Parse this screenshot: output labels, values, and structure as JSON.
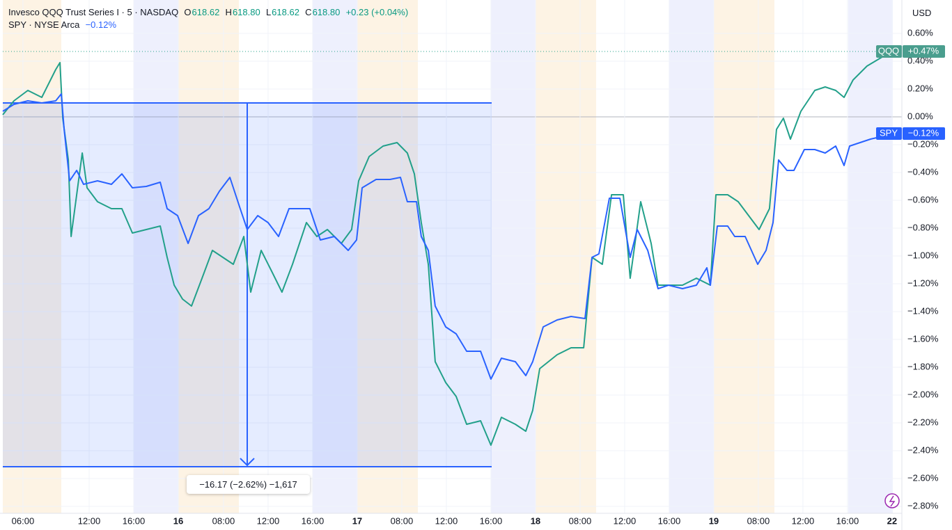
{
  "header": {
    "symbol": "Invesco QQQ Trust Series I · 5 · NASDAQ",
    "o_label": "O",
    "open": "618.62",
    "h_label": "H",
    "high": "618.80",
    "l_label": "L",
    "low": "618.62",
    "c_label": "C",
    "close": "618.80",
    "change": "+0.23 (+0.04%)",
    "compare": "SPY · NYSE Arca",
    "compare_change": "−0.12%"
  },
  "currency": "USD",
  "chart_data": {
    "type": "line",
    "annotation": "−16.17 (−2.62%) −1,617",
    "xlim": [
      0,
      80.69
    ],
    "ylim": [
      -2.85,
      0.84
    ],
    "xticks": [
      {
        "value": 1.81,
        "label": "06:00"
      },
      {
        "value": 7.75,
        "label": "12:00"
      },
      {
        "value": 11.75,
        "label": "16:00"
      },
      {
        "value": 15.75,
        "label": "16"
      },
      {
        "value": 19.81,
        "label": "08:00"
      },
      {
        "value": 23.81,
        "label": "12:00"
      },
      {
        "value": 27.81,
        "label": "16:00"
      },
      {
        "value": 31.81,
        "label": "17"
      },
      {
        "value": 35.81,
        "label": "08:00"
      },
      {
        "value": 39.81,
        "label": "12:00"
      },
      {
        "value": 43.81,
        "label": "16:00"
      },
      {
        "value": 47.81,
        "label": "18"
      },
      {
        "value": 51.81,
        "label": "08:00"
      },
      {
        "value": 55.81,
        "label": "12:00"
      },
      {
        "value": 59.81,
        "label": "16:00"
      },
      {
        "value": 63.81,
        "label": "19"
      },
      {
        "value": 67.81,
        "label": "08:00"
      },
      {
        "value": 71.81,
        "label": "12:00"
      },
      {
        "value": 75.81,
        "label": "16:00"
      },
      {
        "value": 79.81,
        "label": "22"
      }
    ],
    "yticks": [
      {
        "value": 0.6,
        "label": "0.60%"
      },
      {
        "value": 0.4,
        "label": "0.40%"
      },
      {
        "value": 0.2,
        "label": "0.20%"
      },
      {
        "value": 0,
        "label": "0.00%"
      },
      {
        "value": -0.2,
        "label": "−0.20%"
      },
      {
        "value": -0.4,
        "label": "−0.40%"
      },
      {
        "value": -0.6,
        "label": "−0.60%"
      },
      {
        "value": -0.8,
        "label": "−0.80%"
      },
      {
        "value": -1.0,
        "label": "−1.00%"
      },
      {
        "value": -1.2,
        "label": "−1.20%"
      },
      {
        "value": -1.4,
        "label": "−1.40%"
      },
      {
        "value": -1.6,
        "label": "−1.60%"
      },
      {
        "value": -1.8,
        "label": "−1.80%"
      },
      {
        "value": -2.0,
        "label": "−2.00%"
      },
      {
        "value": -2.2,
        "label": "−2.20%"
      },
      {
        "value": -2.4,
        "label": "−2.40%"
      },
      {
        "value": -2.6,
        "label": "−2.60%"
      },
      {
        "value": -2.8,
        "label": "−2.80%"
      }
    ],
    "series": [
      {
        "name": "QQQ",
        "color": "#22a08a",
        "tag_color": "#4a9e8e",
        "last_value_label": "+0.47%",
        "x": [
          0,
          1,
          2.25,
          3.5,
          4.75,
          5.13,
          5.38,
          5.88,
          6.13,
          6.63,
          7.13,
          7.56,
          8.5,
          9.75,
          10.69,
          11.63,
          12.88,
          14.13,
          14.75,
          15.38,
          16.13,
          16.94,
          17.88,
          18.81,
          19.75,
          20.69,
          21.63,
          22.25,
          23.19,
          24.13,
          25.06,
          26,
          27.25,
          28.19,
          29.13,
          30.38,
          31.31,
          31.94,
          32.88,
          34.13,
          35.38,
          36.31,
          36.94,
          37.56,
          38.19,
          38.81,
          39.75,
          40.69,
          41.63,
          42.88,
          43.81,
          44.75,
          46,
          46.94,
          47.56,
          48.19,
          49.75,
          51,
          52.13,
          52.88,
          53.81,
          54.63,
          55.69,
          56.31,
          57.25,
          58.19,
          58.81,
          59.75,
          61,
          62.25,
          63.5,
          64,
          65.06,
          66,
          66.94,
          67.88,
          68.81,
          69.44,
          70.06,
          70.69,
          71.63,
          72.88,
          73.81,
          74.75,
          75.5,
          76.31,
          77.56,
          79.13,
          80.06
        ],
        "values": [
          0.015,
          0.115,
          0.19,
          0.14,
          0.34,
          0.39,
          -0.01,
          -0.31,
          -0.86,
          -0.56,
          -0.26,
          -0.51,
          -0.61,
          -0.66,
          -0.66,
          -0.835,
          -0.81,
          -0.785,
          -1.01,
          -1.21,
          -1.31,
          -1.36,
          -1.16,
          -0.96,
          -1.01,
          -1.06,
          -0.86,
          -1.26,
          -0.96,
          -1.11,
          -1.26,
          -1.06,
          -0.76,
          -0.86,
          -0.81,
          -0.91,
          -0.81,
          -0.46,
          -0.285,
          -0.21,
          -0.185,
          -0.26,
          -0.41,
          -0.76,
          -1.06,
          -1.76,
          -1.91,
          -2.01,
          -2.21,
          -2.185,
          -2.36,
          -2.16,
          -2.21,
          -2.26,
          -2.11,
          -1.81,
          -1.71,
          -1.66,
          -1.66,
          -1.01,
          -1.06,
          -0.56,
          -0.56,
          -1.16,
          -0.61,
          -0.91,
          -1.21,
          -1.21,
          -1.21,
          -1.16,
          -1.21,
          -0.56,
          -0.56,
          -0.61,
          -0.71,
          -0.81,
          -0.66,
          -0.09,
          -0.01,
          -0.16,
          0.04,
          0.19,
          0.215,
          0.19,
          0.14,
          0.265,
          0.365,
          0.44,
          0.47
        ]
      },
      {
        "name": "SPY",
        "color": "#2962ff",
        "tag_color": "#2962ff",
        "last_value_label": "−0.12%",
        "x": [
          0,
          1,
          2.25,
          3.5,
          4.75,
          5.25,
          5.5,
          6,
          6.63,
          7.25,
          8.5,
          9.75,
          10.69,
          11.63,
          12.88,
          14.13,
          14.75,
          15.69,
          16.63,
          17.56,
          18.5,
          19.44,
          20.38,
          21.31,
          21.94,
          22.88,
          23.81,
          24.75,
          25.69,
          26.63,
          27.56,
          28.5,
          29.75,
          31,
          31.75,
          32.25,
          33.5,
          34.75,
          35.69,
          36.31,
          37.13,
          37.56,
          38.19,
          38.81,
          39.75,
          40.69,
          41.63,
          42.88,
          43.81,
          44.75,
          46,
          46.94,
          47.56,
          48.5,
          49.75,
          51,
          52.25,
          52.88,
          53.5,
          54.44,
          55.38,
          56.31,
          56.94,
          57.88,
          58.81,
          59.75,
          61,
          62.25,
          63.19,
          63.5,
          64.13,
          65.06,
          65.69,
          66,
          66.63,
          67.75,
          68.5,
          69.13,
          69.63,
          70.38,
          71,
          71.94,
          72.88,
          73.81,
          74.75,
          75.5,
          76,
          77.88,
          80.06
        ],
        "values": [
          0.04,
          0.09,
          0.115,
          0.1,
          0.115,
          0.165,
          -0.085,
          -0.46,
          -0.385,
          -0.485,
          -0.46,
          -0.485,
          -0.41,
          -0.51,
          -0.5,
          -0.47,
          -0.66,
          -0.71,
          -0.91,
          -0.71,
          -0.66,
          -0.535,
          -0.435,
          -0.66,
          -0.81,
          -0.71,
          -0.76,
          -0.86,
          -0.66,
          -0.66,
          -0.66,
          -0.885,
          -0.86,
          -0.96,
          -0.885,
          -0.51,
          -0.45,
          -0.45,
          -0.435,
          -0.61,
          -0.61,
          -0.86,
          -0.96,
          -1.36,
          -1.51,
          -1.56,
          -1.685,
          -1.685,
          -1.885,
          -1.735,
          -1.76,
          -1.86,
          -1.76,
          -1.51,
          -1.46,
          -1.435,
          -1.45,
          -1.01,
          -0.985,
          -0.585,
          -0.585,
          -1.01,
          -0.81,
          -0.96,
          -1.235,
          -1.21,
          -1.235,
          -1.21,
          -1.085,
          -1.21,
          -0.785,
          -0.785,
          -0.86,
          -0.86,
          -0.86,
          -1.06,
          -0.96,
          -0.76,
          -0.31,
          -0.385,
          -0.385,
          -0.235,
          -0.235,
          -0.26,
          -0.21,
          -0.35,
          -0.21,
          -0.16,
          -0.12
        ]
      }
    ]
  }
}
